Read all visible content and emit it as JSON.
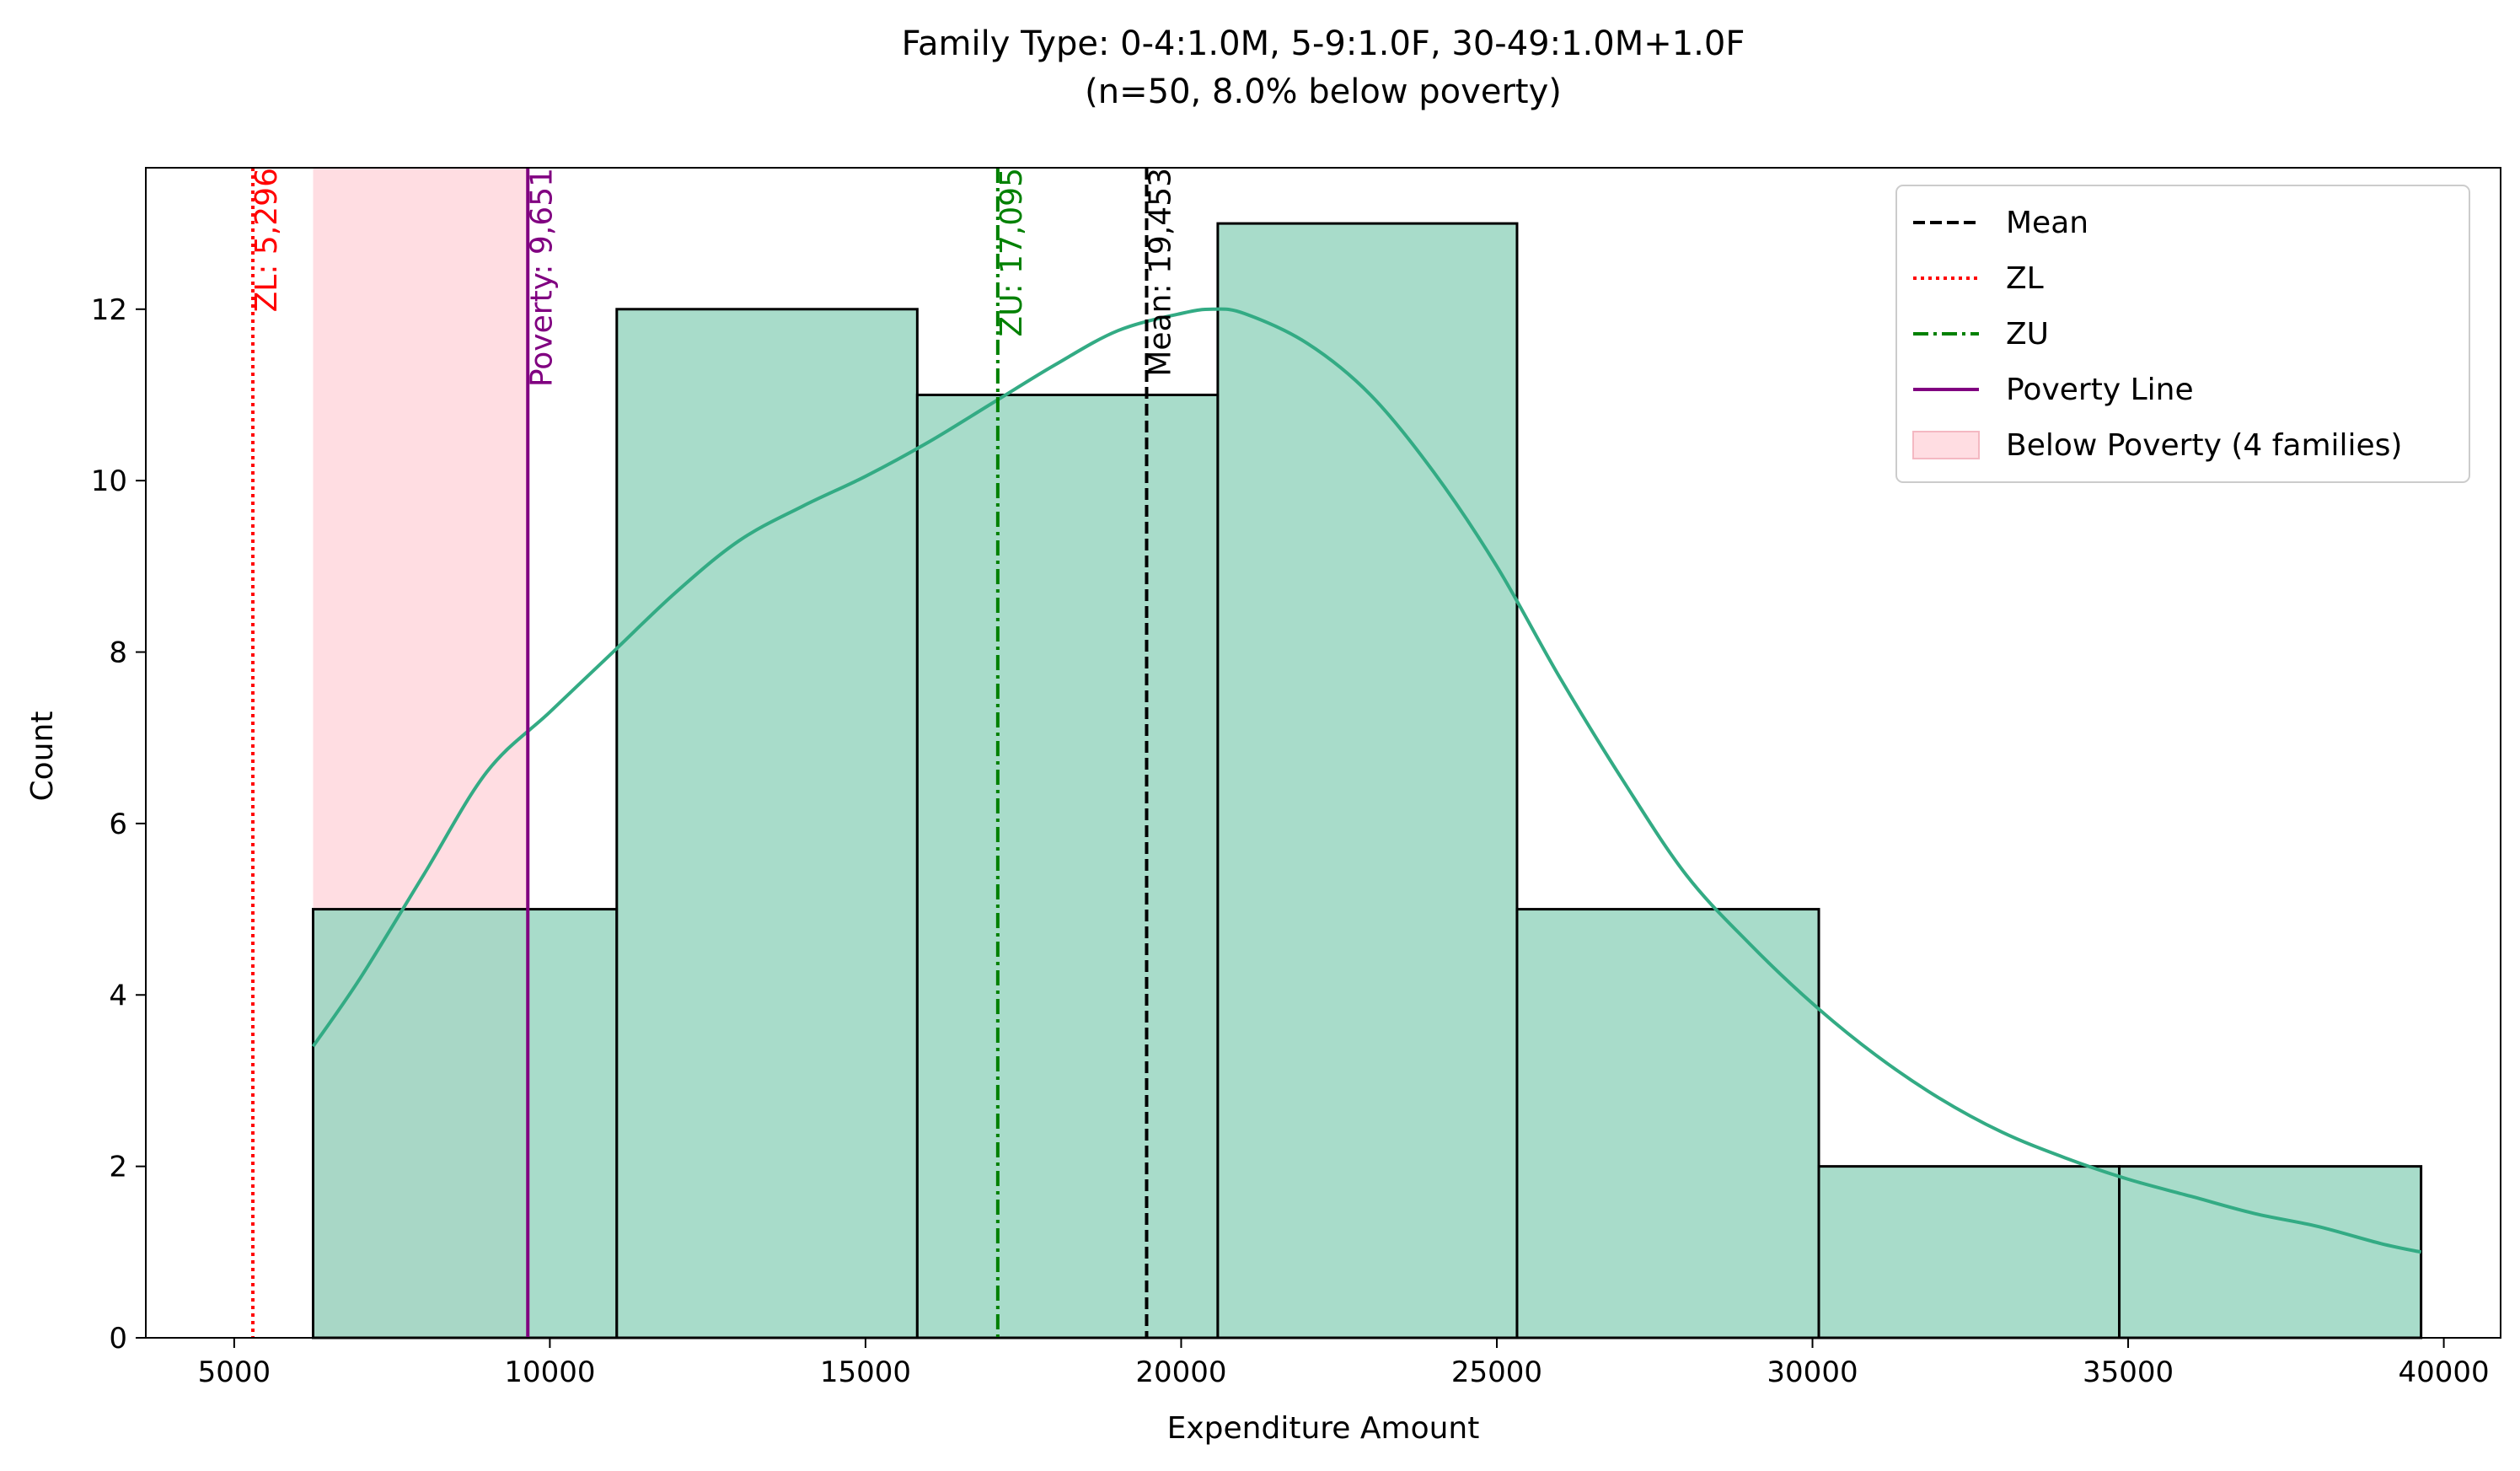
{
  "chart_data": {
    "type": "bar",
    "title": "Family Type: 0-4:1.0M, 5-9:1.0F, 30-49:1.0M+1.0F",
    "subtitle": "(n=50, 8.0% below poverty)",
    "xlabel": "Expenditure Amount",
    "ylabel": "Count",
    "xlim": [
      3600,
      40900
    ],
    "ylim": [
      0,
      13.65
    ],
    "xticks": [
      5000,
      10000,
      15000,
      20000,
      25000,
      30000,
      35000,
      40000
    ],
    "yticks": [
      0,
      2,
      4,
      6,
      8,
      10,
      12
    ],
    "grid": false,
    "legend_position": "top-right",
    "bins": [
      {
        "x0": 6250,
        "x1": 11060,
        "count": 5
      },
      {
        "x0": 11060,
        "x1": 15820,
        "count": 12
      },
      {
        "x0": 15820,
        "x1": 20580,
        "count": 11
      },
      {
        "x0": 20580,
        "x1": 25320,
        "count": 13
      },
      {
        "x0": 25320,
        "x1": 30100,
        "count": 5
      },
      {
        "x0": 30100,
        "x1": 34860,
        "count": 2
      },
      {
        "x0": 34860,
        "x1": 39640,
        "count": 2
      }
    ],
    "kde": {
      "x": [
        6250,
        7000,
        8000,
        9000,
        10000,
        11000,
        12000,
        13000,
        14000,
        15000,
        16000,
        17000,
        18000,
        19000,
        20000,
        20500,
        21000,
        22000,
        23000,
        24000,
        25000,
        26000,
        27000,
        28000,
        29000,
        30000,
        31000,
        32000,
        33000,
        34000,
        35000,
        36000,
        37000,
        38000,
        39000,
        39640
      ],
      "y": [
        3.4,
        4.2,
        5.4,
        6.6,
        7.3,
        8.0,
        8.7,
        9.3,
        9.7,
        10.05,
        10.45,
        10.9,
        11.35,
        11.75,
        11.95,
        12.0,
        11.95,
        11.6,
        11.0,
        10.1,
        9.0,
        7.7,
        6.5,
        5.4,
        4.6,
        3.9,
        3.3,
        2.8,
        2.4,
        2.1,
        1.85,
        1.65,
        1.45,
        1.3,
        1.1,
        1.0
      ]
    },
    "below_poverty_region": {
      "x0": 6250,
      "x1": 9651
    },
    "reference_lines": [
      {
        "key": "zl",
        "label": "ZL: 5,296",
        "x": 5296,
        "color": "#ff0000",
        "style": "dotted"
      },
      {
        "key": "poverty",
        "label": "Poverty: 9,651",
        "x": 9651,
        "color": "#800080",
        "style": "solid"
      },
      {
        "key": "zu",
        "label": "ZU: 17,095",
        "x": 17095,
        "color": "#008000",
        "style": "dashdot"
      },
      {
        "key": "mean",
        "label": "Mean: 19,453",
        "x": 19453,
        "color": "#000000",
        "style": "dashed"
      }
    ],
    "legend": [
      {
        "label": "Mean",
        "color": "#000000",
        "style": "dashed"
      },
      {
        "label": "ZL",
        "color": "#ff0000",
        "style": "dotted"
      },
      {
        "label": "ZU",
        "color": "#008000",
        "style": "dashdot"
      },
      {
        "label": "Poverty Line",
        "color": "#800080",
        "style": "solid"
      },
      {
        "label": "Below Poverty (4 families)",
        "color": "#ffdde2",
        "style": "patch"
      }
    ],
    "colors": {
      "bar_fill": "#99d6c1",
      "bar_edge": "#000000",
      "kde_line": "#33ab84",
      "poverty_region": "#ffdde2"
    }
  }
}
